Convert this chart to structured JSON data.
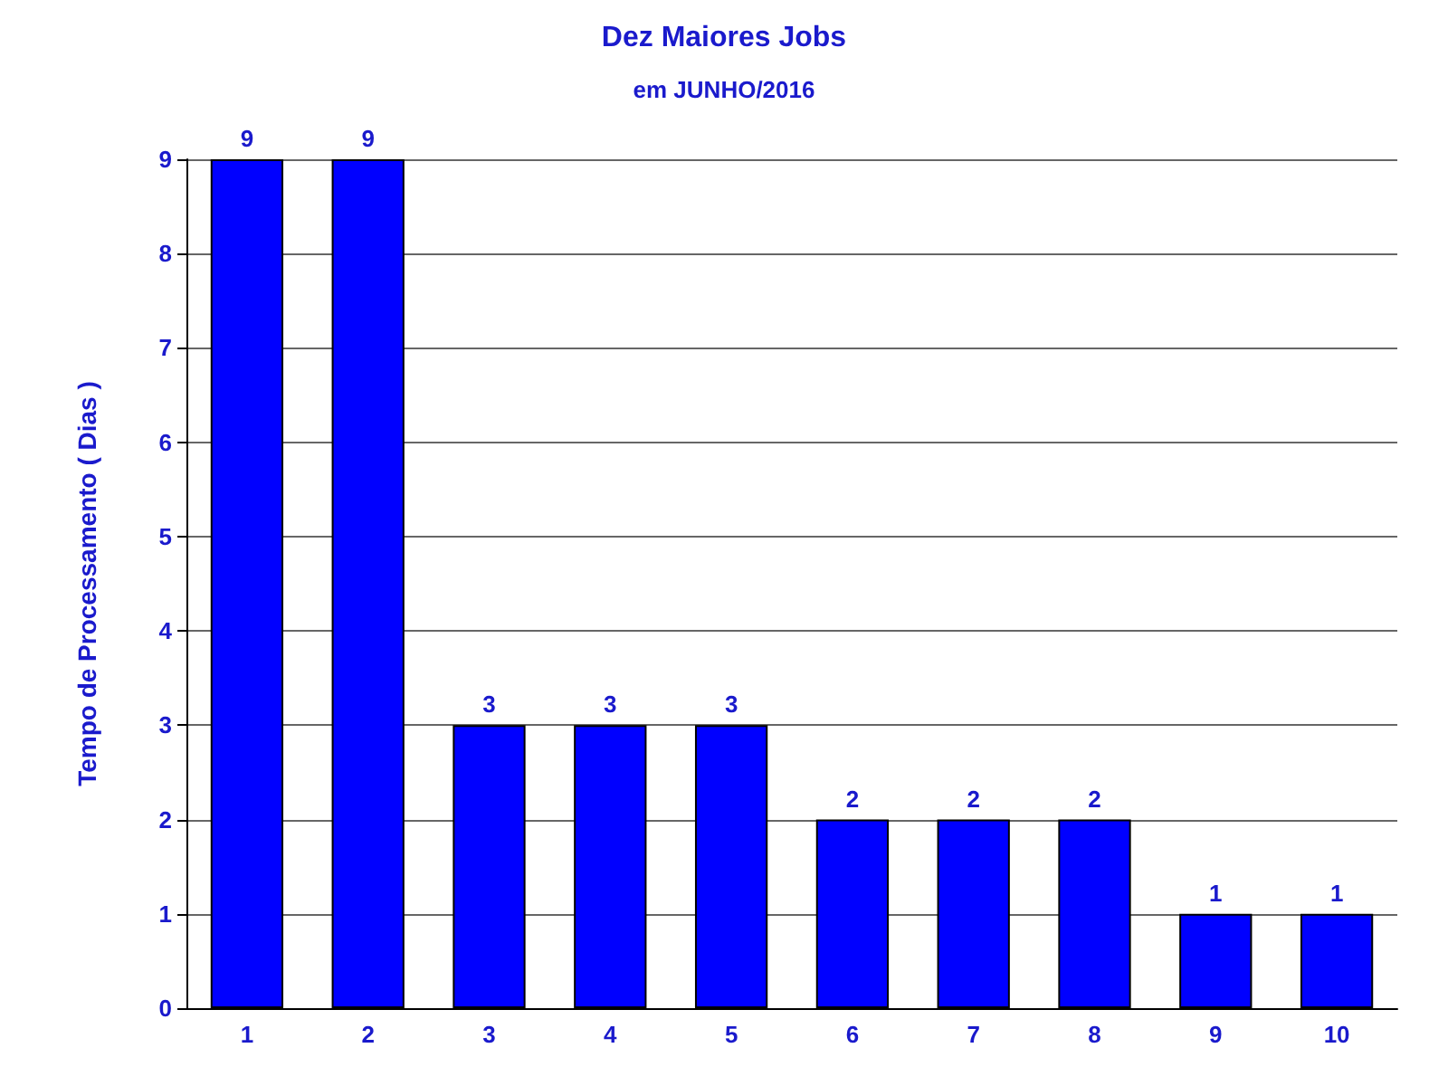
{
  "chart_data": {
    "type": "bar",
    "title": "Dez Maiores Jobs",
    "subtitle": "em JUNHO/2016",
    "ylabel": "Tempo de Processamento ( Dias )",
    "categories": [
      "1",
      "2",
      "3",
      "4",
      "5",
      "6",
      "7",
      "8",
      "9",
      "10"
    ],
    "values": [
      9,
      9,
      3,
      3,
      3,
      2,
      2,
      2,
      1,
      1
    ],
    "color": "#0000ff",
    "ylim": [
      0,
      9
    ],
    "yticks": [
      0,
      1,
      2,
      3,
      4,
      5,
      6,
      7,
      8,
      9
    ],
    "grid": "y",
    "data_labels": true
  }
}
